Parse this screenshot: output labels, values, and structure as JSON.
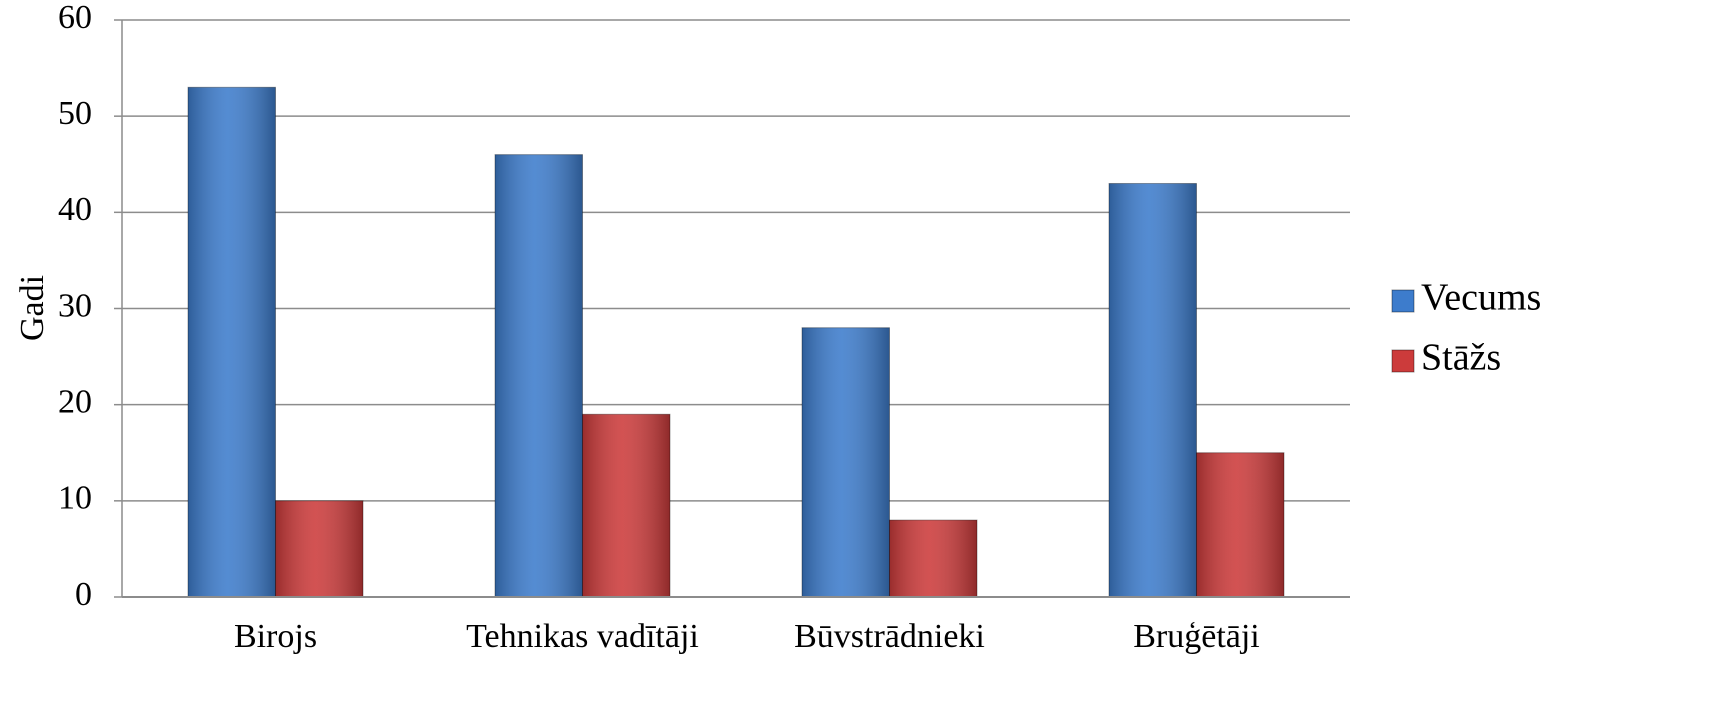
{
  "chart_data": {
    "type": "bar",
    "y_label": "Gadi",
    "categories": [
      "Birojs",
      "Tehnikas vadītāji",
      "Būvstrādnieki",
      "Bruģētāji"
    ],
    "series": [
      {
        "name": "Vecums",
        "color": "#3d7ccc",
        "values": [
          53,
          46,
          28,
          43
        ]
      },
      {
        "name": "Stāžs",
        "color": "#cc3b3b",
        "values": [
          10,
          19,
          8,
          15
        ]
      }
    ],
    "ylim": [
      0,
      60
    ],
    "yticks": [
      0,
      10,
      20,
      30,
      40,
      50,
      60
    ],
    "grid": true,
    "legend": "right"
  }
}
